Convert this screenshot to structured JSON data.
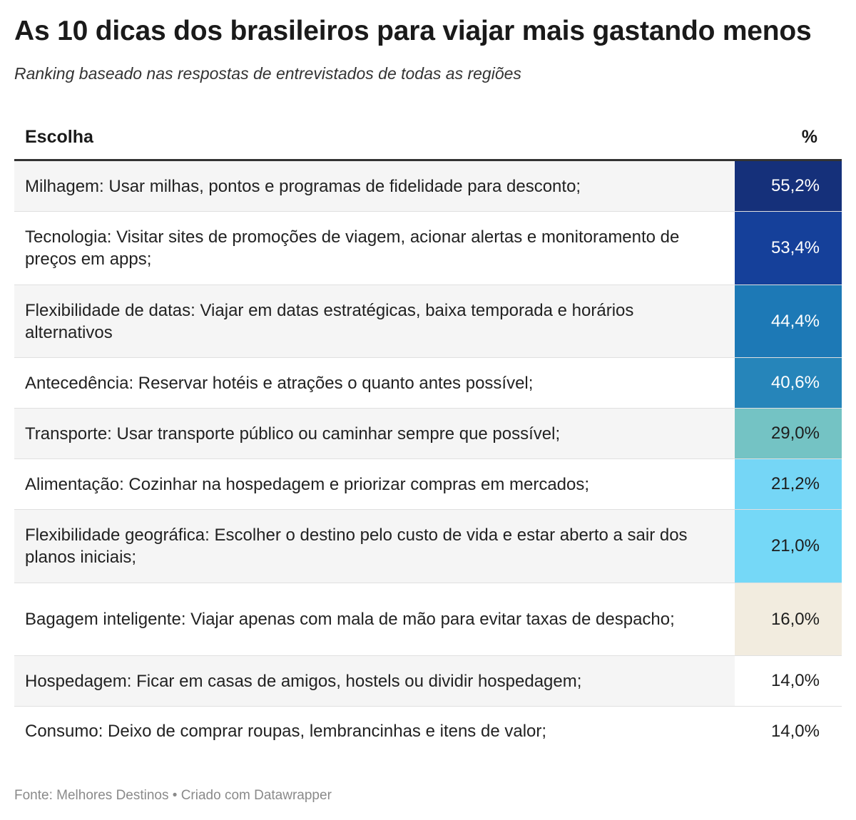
{
  "title": "As 10 dicas dos brasileiros para viajar mais gastando menos",
  "subtitle": "Ranking baseado nas respostas de entrevistados de todas as regiões",
  "chart_data": {
    "type": "table",
    "columns": [
      "Escolha",
      "%"
    ],
    "rows": [
      {
        "label": "Milhagem: Usar milhas, pontos e programas de fidelidade para desconto;",
        "value": 55.2,
        "value_text": "55,2%",
        "color": "#15307a",
        "text_color": "#ffffff"
      },
      {
        "label": "Tecnologia: Visitar sites de promoções de viagem, acionar alertas e monitoramento de preços em apps;",
        "value": 53.4,
        "value_text": "53,4%",
        "color": "#15409a",
        "text_color": "#ffffff"
      },
      {
        "label": "Flexibilidade de datas: Viajar em datas estratégicas, baixa temporada e horários alternativos",
        "value": 44.4,
        "value_text": "44,4%",
        "color": "#1d79b6",
        "text_color": "#ffffff"
      },
      {
        "label": "Antecedência: Reservar hotéis e atrações o quanto antes possível;",
        "value": 40.6,
        "value_text": "40,6%",
        "color": "#2685ba",
        "text_color": "#ffffff"
      },
      {
        "label": "Transporte: Usar transporte público ou caminhar sempre que possível;",
        "value": 29.0,
        "value_text": "29,0%",
        "color": "#74c3c4",
        "text_color": "#1d1d1d"
      },
      {
        "label": "Alimentação: Cozinhar na hospedagem e priorizar compras em mercados;",
        "value": 21.2,
        "value_text": "21,2%",
        "color": "#75d6f6",
        "text_color": "#1d1d1d"
      },
      {
        "label": "Flexibilidade geográfica: Escolher o destino pelo custo de vida e estar aberto a sair dos planos iniciais;",
        "value": 21.0,
        "value_text": "21,0%",
        "color": "#75d8f7",
        "text_color": "#1d1d1d"
      },
      {
        "label": "Bagagem inteligente: Viajar apenas com mala de mão para evitar taxas de despacho;",
        "value": 16.0,
        "value_text": "16,0%",
        "color": "#f2ecdf",
        "text_color": "#1d1d1d"
      },
      {
        "label": "Hospedagem: Ficar em casas de amigos, hostels ou dividir hospedagem;",
        "value": 14.0,
        "value_text": "14,0%",
        "color": "#ffffff",
        "text_color": "#1d1d1d"
      },
      {
        "label": "Consumo: Deixo de comprar roupas, lembrancinhas e itens de valor;",
        "value": 14.0,
        "value_text": "14,0%",
        "color": "#ffffff",
        "text_color": "#1d1d1d"
      }
    ]
  },
  "footer": "Fonte: Melhores Destinos • Criado com Datawrapper"
}
